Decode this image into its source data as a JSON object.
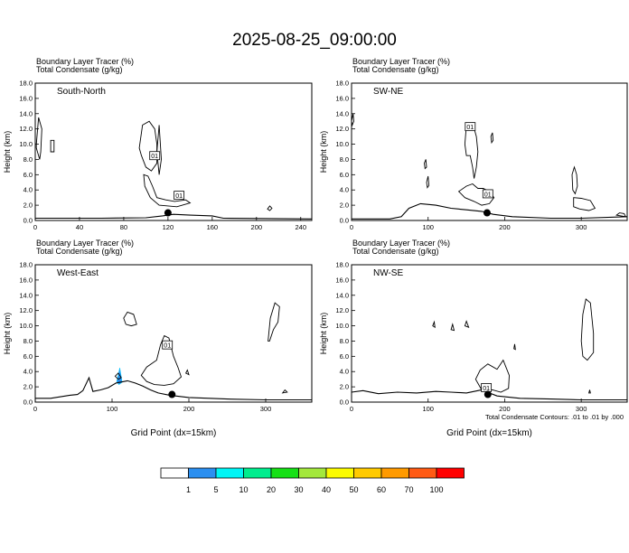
{
  "figure": {
    "title": "2025-08-25_09:00:00",
    "footnote": "Total Condensate Contours: .01 to .01 by .000"
  },
  "chart_data": [
    {
      "type": "contour",
      "name": "South-North",
      "label": "South-North",
      "header": [
        "Boundary Layer Tracer   (%)",
        "Total Condensate   (g/kg)"
      ],
      "ylabel": "Height (km)",
      "xlabel": "",
      "xlim": [
        0,
        250
      ],
      "ylim": [
        0,
        18
      ],
      "xticks": [
        0,
        40,
        80,
        120,
        160,
        200,
        240
      ],
      "yticks": [
        0,
        2,
        4,
        6,
        8,
        10,
        12,
        14,
        16,
        18
      ],
      "xtick_labels": [
        "0",
        "40",
        "80",
        "120",
        "160",
        "200",
        "240"
      ],
      "ytick_labels": [
        "0.0",
        "2.0",
        "4.0",
        "6.0",
        "8.0",
        "10.0",
        "12.0",
        "14.0",
        "16.0",
        "18.0"
      ],
      "station_marker": {
        "x": 120,
        "y": 1.0
      },
      "contour_labels": [
        {
          "text": "01",
          "x": 108,
          "y": 8.5
        },
        {
          "text": "01",
          "x": 130,
          "y": 3.3
        }
      ],
      "terrain": [
        [
          0,
          0.3
        ],
        [
          60,
          0.3
        ],
        [
          100,
          0.35
        ],
        [
          115,
          0.6
        ],
        [
          125,
          0.8
        ],
        [
          140,
          0.7
        ],
        [
          160,
          0.6
        ],
        [
          170,
          0.3
        ],
        [
          250,
          0.2
        ]
      ],
      "condensate_contours": [
        [
          [
            1,
            10
          ],
          [
            3,
            13.5
          ],
          [
            6,
            12
          ],
          [
            5,
            9
          ],
          [
            4,
            8
          ],
          [
            1,
            9.5
          ]
        ],
        [
          [
            14,
            10.5
          ],
          [
            17,
            10.5
          ],
          [
            17,
            9
          ],
          [
            14,
            9
          ]
        ],
        [
          [
            94,
            9.5
          ],
          [
            97,
            12.5
          ],
          [
            103,
            13
          ],
          [
            108,
            12
          ],
          [
            110,
            10
          ],
          [
            110,
            7.5
          ],
          [
            105,
            6.5
          ],
          [
            100,
            7
          ],
          [
            96,
            8.5
          ]
        ],
        [
          [
            98,
            6
          ],
          [
            102,
            5.8
          ],
          [
            106,
            4.5
          ],
          [
            110,
            3
          ],
          [
            118,
            2.7
          ],
          [
            126,
            2.5
          ],
          [
            136,
            2.7
          ],
          [
            140,
            2.3
          ],
          [
            128,
            1.8
          ],
          [
            112,
            2
          ],
          [
            104,
            3
          ],
          [
            99,
            4.5
          ]
        ],
        [
          [
            110,
            9
          ],
          [
            112,
            12.5
          ],
          [
            114,
            8
          ],
          [
            112,
            6
          ]
        ],
        [
          [
            210,
            1.5
          ],
          [
            212,
            1.9
          ],
          [
            214,
            1.6
          ],
          [
            212,
            1.3
          ]
        ]
      ],
      "tracer_fill": []
    },
    {
      "type": "contour",
      "name": "SW-NE",
      "label": "SW-NE",
      "header": [
        "Boundary Layer Tracer   (%)",
        "Total Condensate   (g/kg)"
      ],
      "ylabel": "Height (km)",
      "xlabel": "",
      "xlim": [
        0,
        360
      ],
      "ylim": [
        0,
        18
      ],
      "xticks": [
        0,
        100,
        200,
        300
      ],
      "yticks": [
        0,
        2,
        4,
        6,
        8,
        10,
        12,
        14,
        16,
        18
      ],
      "xtick_labels": [
        "0",
        "100",
        "200",
        "300"
      ],
      "ytick_labels": [
        "0.0",
        "2.0",
        "4.0",
        "6.0",
        "8.0",
        "10.0",
        "12.0",
        "14.0",
        "16.0",
        "18.0"
      ],
      "station_marker": {
        "x": 177,
        "y": 1.0
      },
      "contour_labels": [
        {
          "text": "01",
          "x": 155,
          "y": 12.3
        },
        {
          "text": "01",
          "x": 178,
          "y": 3.5
        }
      ],
      "terrain": [
        [
          0,
          0.2
        ],
        [
          50,
          0.2
        ],
        [
          65,
          0.5
        ],
        [
          75,
          1.6
        ],
        [
          90,
          2.2
        ],
        [
          110,
          2.0
        ],
        [
          130,
          1.6
        ],
        [
          150,
          1.4
        ],
        [
          170,
          1.2
        ],
        [
          185,
          0.8
        ],
        [
          210,
          0.5
        ],
        [
          260,
          0.3
        ],
        [
          300,
          0.3
        ],
        [
          360,
          0.5
        ]
      ],
      "condensate_contours": [
        [
          [
            0,
            13
          ],
          [
            2,
            14
          ],
          [
            3,
            13
          ],
          [
            1,
            12.5
          ]
        ],
        [
          [
            95,
            7.5
          ],
          [
            97,
            8
          ],
          [
            98,
            7
          ],
          [
            96,
            6.8
          ]
        ],
        [
          [
            98,
            5
          ],
          [
            100,
            5.8
          ],
          [
            101,
            4.6
          ],
          [
            99,
            4.3
          ]
        ],
        [
          [
            148,
            10
          ],
          [
            150,
            12.5
          ],
          [
            158,
            12.8
          ],
          [
            163,
            11
          ],
          [
            165,
            9
          ],
          [
            163,
            7
          ],
          [
            160,
            5.5
          ],
          [
            158,
            7
          ],
          [
            155,
            8.5
          ],
          [
            150,
            8.5
          ]
        ],
        [
          [
            140,
            3.8
          ],
          [
            150,
            4.5
          ],
          [
            158,
            4.8
          ],
          [
            165,
            4.2
          ],
          [
            172,
            4.2
          ],
          [
            180,
            3.8
          ],
          [
            186,
            3
          ],
          [
            180,
            2.2
          ],
          [
            170,
            2
          ],
          [
            160,
            2.5
          ],
          [
            148,
            3
          ]
        ],
        [
          [
            182,
            11
          ],
          [
            184,
            11.5
          ],
          [
            185,
            10.5
          ],
          [
            183,
            10.2
          ]
        ],
        [
          [
            288,
            6
          ],
          [
            291,
            7
          ],
          [
            294,
            6
          ],
          [
            295,
            4.5
          ],
          [
            292,
            3.5
          ],
          [
            289,
            4
          ]
        ],
        [
          [
            290,
            3
          ],
          [
            300,
            2.9
          ],
          [
            312,
            2.6
          ],
          [
            318,
            1.6
          ],
          [
            310,
            1.3
          ],
          [
            298,
            1.5
          ],
          [
            290,
            1.8
          ]
        ],
        [
          [
            346,
            0.7
          ],
          [
            350,
            1
          ],
          [
            356,
            0.9
          ],
          [
            358,
            0.5
          ]
        ]
      ],
      "tracer_fill": []
    },
    {
      "type": "contour",
      "name": "West-East",
      "label": "West-East",
      "header": [
        "Boundary Layer Tracer   (%)",
        "Total Condensate   (g/kg)"
      ],
      "ylabel": "Height (km)",
      "xlabel": "Grid Point (dx=15km)",
      "xlim": [
        0,
        360
      ],
      "ylim": [
        0,
        18
      ],
      "xticks": [
        0,
        100,
        200,
        300
      ],
      "yticks": [
        0,
        2,
        4,
        6,
        8,
        10,
        12,
        14,
        16,
        18
      ],
      "xtick_labels": [
        "0",
        "100",
        "200",
        "300"
      ],
      "ytick_labels": [
        "0.0",
        "2.0",
        "4.0",
        "6.0",
        "8.0",
        "10.0",
        "12.0",
        "14.0",
        "16.0",
        "18.0"
      ],
      "station_marker": {
        "x": 178,
        "y": 1.0
      },
      "contour_labels": [
        {
          "text": "01",
          "x": 172,
          "y": 7.5
        }
      ],
      "terrain": [
        [
          0,
          0.5
        ],
        [
          20,
          0.5
        ],
        [
          45,
          0.9
        ],
        [
          55,
          1.0
        ],
        [
          62,
          1.5
        ],
        [
          70,
          3.2
        ],
        [
          75,
          1.4
        ],
        [
          85,
          1.6
        ],
        [
          95,
          1.9
        ],
        [
          105,
          2.5
        ],
        [
          120,
          2.8
        ],
        [
          130,
          2.5
        ],
        [
          140,
          2.1
        ],
        [
          150,
          1.6
        ],
        [
          160,
          1.2
        ],
        [
          175,
          0.9
        ],
        [
          200,
          0.6
        ],
        [
          250,
          0.4
        ],
        [
          300,
          0.3
        ],
        [
          360,
          0.3
        ]
      ],
      "condensate_contours": [
        [
          [
            115,
            11
          ],
          [
            120,
            11.8
          ],
          [
            128,
            11.5
          ],
          [
            132,
            10.2
          ],
          [
            125,
            10
          ],
          [
            118,
            10.2
          ]
        ],
        [
          [
            138,
            3.5
          ],
          [
            145,
            4.6
          ],
          [
            158,
            5.5
          ],
          [
            163,
            7.5
          ],
          [
            168,
            8.7
          ],
          [
            174,
            8.4
          ],
          [
            180,
            6
          ],
          [
            186,
            4.5
          ],
          [
            190,
            3.3
          ],
          [
            180,
            2.4
          ],
          [
            168,
            2.2
          ],
          [
            155,
            2.3
          ],
          [
            145,
            2.7
          ]
        ],
        [
          [
            104,
            3.4
          ],
          [
            108,
            3.8
          ],
          [
            112,
            3.2
          ],
          [
            108,
            3
          ]
        ],
        [
          [
            196,
            3.8
          ],
          [
            198,
            4.2
          ],
          [
            200,
            3.6
          ]
        ],
        [
          [
            303,
            8
          ],
          [
            306,
            11
          ],
          [
            312,
            13
          ],
          [
            318,
            12.5
          ],
          [
            316,
            10.5
          ],
          [
            310,
            9.5
          ],
          [
            305,
            8
          ]
        ],
        [
          [
            322,
            1.2
          ],
          [
            325,
            1.6
          ],
          [
            328,
            1.3
          ]
        ]
      ],
      "tracer_fill": [
        {
          "min": 1,
          "max": 5,
          "pts": [
            [
              106,
              2.7
            ],
            [
              108,
              3.5
            ],
            [
              110,
              4.5
            ],
            [
              112,
              3.3
            ],
            [
              113,
              2.6
            ],
            [
              109,
              2.3
            ]
          ]
        }
      ]
    },
    {
      "type": "contour",
      "name": "NW-SE",
      "label": "NW-SE",
      "header": [
        "Boundary Layer Tracer   (%)",
        "Total Condensate   (g/kg)"
      ],
      "ylabel": "Height (km)",
      "xlabel": "Grid Point (dx=15km)",
      "xlim": [
        0,
        360
      ],
      "ylim": [
        0,
        18
      ],
      "xticks": [
        0,
        100,
        200,
        300
      ],
      "yticks": [
        0,
        2,
        4,
        6,
        8,
        10,
        12,
        14,
        16,
        18
      ],
      "xtick_labels": [
        "0",
        "100",
        "200",
        "300"
      ],
      "ytick_labels": [
        "0.0",
        "2.0",
        "4.0",
        "6.0",
        "8.0",
        "10.0",
        "12.0",
        "14.0",
        "16.0",
        "18.0"
      ],
      "station_marker": {
        "x": 178,
        "y": 1.0
      },
      "contour_labels": [
        {
          "text": "01",
          "x": 176,
          "y": 1.9
        }
      ],
      "terrain": [
        [
          0,
          1.3
        ],
        [
          15,
          1.5
        ],
        [
          35,
          1.1
        ],
        [
          60,
          1.3
        ],
        [
          85,
          1.2
        ],
        [
          110,
          1.4
        ],
        [
          130,
          1.3
        ],
        [
          150,
          1.2
        ],
        [
          165,
          1.5
        ],
        [
          175,
          1.7
        ],
        [
          180,
          1.2
        ],
        [
          190,
          0.8
        ],
        [
          220,
          0.5
        ],
        [
          260,
          0.4
        ],
        [
          300,
          0.3
        ],
        [
          360,
          0.3
        ]
      ],
      "condensate_contours": [
        [
          [
            106,
            10
          ],
          [
            108,
            10.5
          ],
          [
            109,
            9.8
          ]
        ],
        [
          [
            130,
            9.5
          ],
          [
            132,
            10.2
          ],
          [
            134,
            9.4
          ]
        ],
        [
          [
            148,
            10
          ],
          [
            150,
            10.6
          ],
          [
            153,
            9.8
          ]
        ],
        [
          [
            162,
            3
          ],
          [
            168,
            4.2
          ],
          [
            178,
            5
          ],
          [
            190,
            4.3
          ],
          [
            198,
            5.5
          ],
          [
            206,
            3.5
          ],
          [
            205,
            1.8
          ],
          [
            195,
            1.3
          ],
          [
            184,
            1.6
          ],
          [
            170,
            1.6
          ]
        ],
        [
          [
            212,
            7
          ],
          [
            213,
            7.6
          ],
          [
            214,
            6.9
          ]
        ],
        [
          [
            300,
            8
          ],
          [
            302,
            11.5
          ],
          [
            306,
            13.5
          ],
          [
            312,
            13
          ],
          [
            316,
            9
          ],
          [
            316,
            6.5
          ],
          [
            308,
            5.5
          ],
          [
            302,
            6
          ]
        ],
        [
          [
            310,
            1.2
          ],
          [
            311,
            1.6
          ],
          [
            312,
            1.2
          ]
        ]
      ],
      "tracer_fill": []
    }
  ],
  "colorbar": {
    "labels": [
      "1",
      "5",
      "10",
      "20",
      "30",
      "40",
      "50",
      "60",
      "70",
      "100"
    ],
    "colors": [
      "#ffffff",
      "#2b8ff0",
      "#00f5f5",
      "#00ed8e",
      "#16e016",
      "#a3e83c",
      "#fbfb00",
      "#ffca00",
      "#ff9a00",
      "#ff5a14",
      "#ff0000"
    ]
  },
  "colors": {
    "contour": "#000000",
    "terrain": "#000000",
    "marker": "#000000"
  }
}
